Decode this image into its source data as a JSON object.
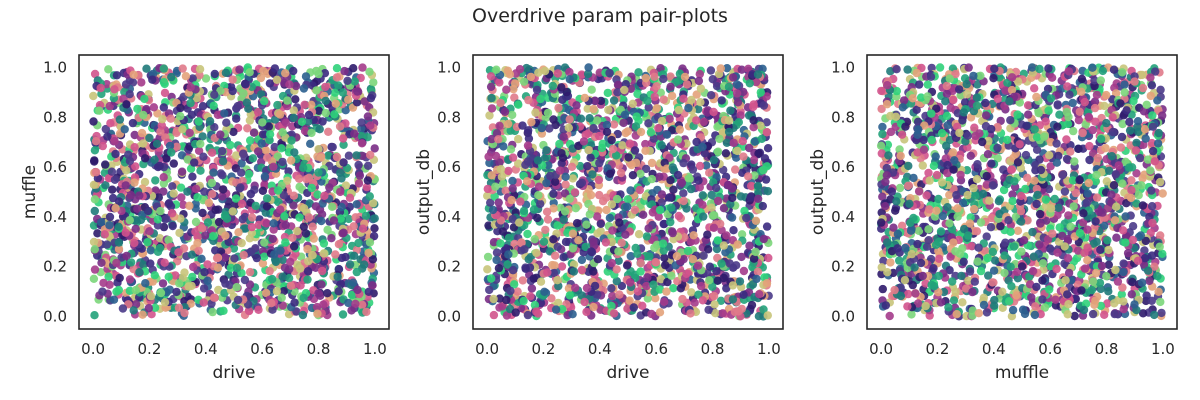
{
  "figure_title": "Overdrive param pair-plots",
  "colors": {
    "frame": "#262626",
    "background": "#ffffff",
    "palette": [
      "#2f1b6b",
      "#3b2a80",
      "#2b5f8f",
      "#1f7a7a",
      "#22a27a",
      "#2fd17a",
      "#7bd67a",
      "#c8c47a",
      "#e3a27a",
      "#e07a8a",
      "#d2538c",
      "#a43b8b",
      "#7a2d86",
      "#4a3a88"
    ]
  },
  "chart_data": [
    {
      "type": "scatter",
      "title": "",
      "xlabel": "drive",
      "ylabel": "muffle",
      "xlim": [
        -0.05,
        1.05
      ],
      "ylim": [
        -0.05,
        1.05
      ],
      "xticks": [
        "0.0",
        "0.2",
        "0.4",
        "0.6",
        "0.8",
        "1.0"
      ],
      "yticks": [
        "0.0",
        "0.2",
        "0.4",
        "0.6",
        "0.8",
        "1.0"
      ],
      "grid": false,
      "legend": "none",
      "point_distribution": "uniform",
      "x_range": [
        0,
        1
      ],
      "y_range": [
        0,
        1
      ],
      "point_count": 2000
    },
    {
      "type": "scatter",
      "title": "",
      "xlabel": "drive",
      "ylabel": "output_db",
      "xlim": [
        -0.05,
        1.05
      ],
      "ylim": [
        -0.05,
        1.05
      ],
      "xticks": [
        "0.0",
        "0.2",
        "0.4",
        "0.6",
        "0.8",
        "1.0"
      ],
      "yticks": [
        "0.0",
        "0.2",
        "0.4",
        "0.6",
        "0.8",
        "1.0"
      ],
      "grid": false,
      "legend": "none",
      "point_distribution": "uniform",
      "x_range": [
        0,
        1
      ],
      "y_range": [
        0,
        1
      ],
      "point_count": 2000
    },
    {
      "type": "scatter",
      "title": "",
      "xlabel": "muffle",
      "ylabel": "output_db",
      "xlim": [
        -0.05,
        1.05
      ],
      "ylim": [
        -0.05,
        1.05
      ],
      "xticks": [
        "0.0",
        "0.2",
        "0.4",
        "0.6",
        "0.8",
        "1.0"
      ],
      "yticks": [
        "0.0",
        "0.2",
        "0.4",
        "0.6",
        "0.8",
        "1.0"
      ],
      "grid": false,
      "legend": "none",
      "point_distribution": "uniform",
      "x_range": [
        0,
        1
      ],
      "y_range": [
        0,
        1
      ],
      "point_count": 2000
    }
  ]
}
